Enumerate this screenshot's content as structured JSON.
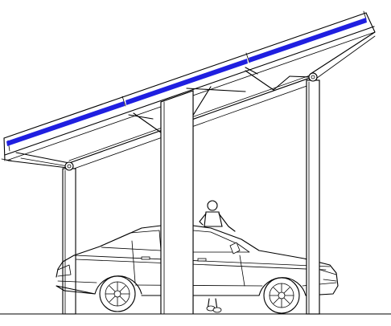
{
  "drawing": {
    "subject": "solar-carport-elevation",
    "colors": {
      "background": "#ffffff",
      "line": "#000000",
      "solar_panel": "#1f1fe0"
    },
    "components": {
      "solar_panel_count": 3,
      "support_columns": 3
    }
  }
}
